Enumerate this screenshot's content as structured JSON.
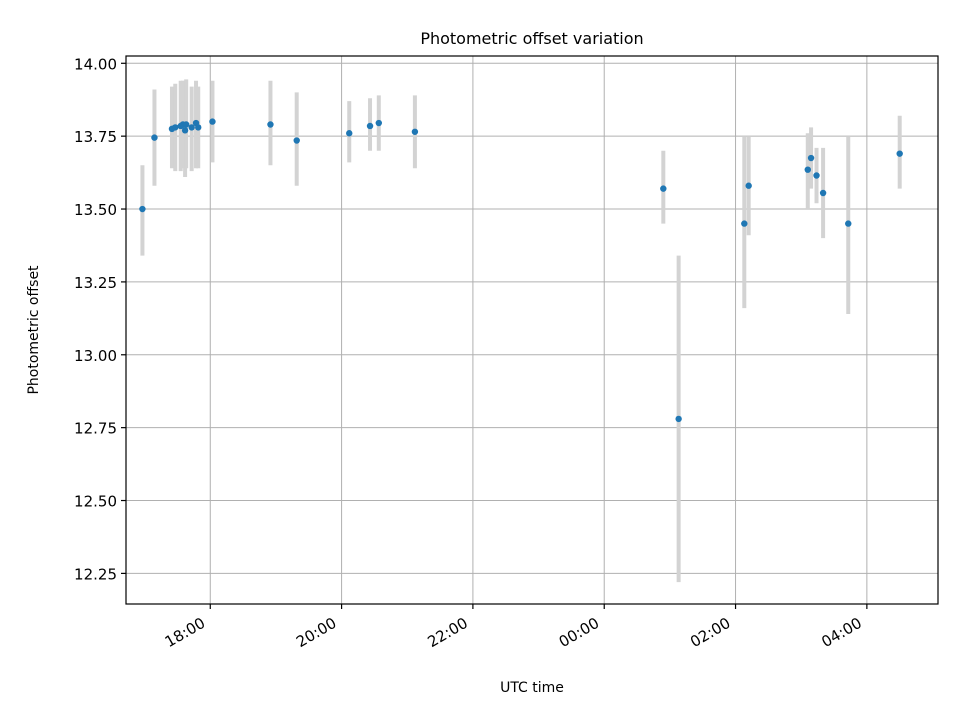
{
  "chart_data": {
    "type": "scatter",
    "title": "Photometric offset variation",
    "xlabel": "UTC time",
    "ylabel": "Photometric offset",
    "x_axis_kind": "time",
    "xlim": [
      "16:43",
      "05:05"
    ],
    "ylim": [
      12.145,
      14.025
    ],
    "grid": true,
    "x_ticks": [
      "18:00",
      "20:00",
      "22:00",
      "00:00",
      "02:00",
      "04:00"
    ],
    "y_ticks": [
      12.25,
      12.5,
      12.75,
      13.0,
      13.25,
      13.5,
      13.75,
      14.0
    ],
    "y_tick_labels": [
      "12.25",
      "12.50",
      "12.75",
      "13.00",
      "13.25",
      "13.50",
      "13.75",
      "14.00"
    ],
    "colors": {
      "point": "#1f77b4",
      "errorbar": "#d3d3d3",
      "grid": "#b0b0b0"
    },
    "points": [
      {
        "x": "16:58",
        "y": 13.5,
        "ymin": 13.34,
        "ymax": 13.65
      },
      {
        "x": "17:09",
        "y": 13.745,
        "ymin": 13.58,
        "ymax": 13.91
      },
      {
        "x": "17:25",
        "y": 13.775,
        "ymin": 13.64,
        "ymax": 13.92
      },
      {
        "x": "17:28",
        "y": 13.78,
        "ymin": 13.63,
        "ymax": 13.93
      },
      {
        "x": "17:33",
        "y": 13.785,
        "ymin": 13.63,
        "ymax": 13.94
      },
      {
        "x": "17:35",
        "y": 13.79,
        "ymin": 13.64,
        "ymax": 13.94
      },
      {
        "x": "17:37",
        "y": 13.77,
        "ymin": 13.61,
        "ymax": 13.94
      },
      {
        "x": "17:38",
        "y": 13.79,
        "ymin": 13.64,
        "ymax": 13.945
      },
      {
        "x": "17:43",
        "y": 13.78,
        "ymin": 13.63,
        "ymax": 13.92
      },
      {
        "x": "17:47",
        "y": 13.795,
        "ymin": 13.64,
        "ymax": 13.94
      },
      {
        "x": "17:49",
        "y": 13.78,
        "ymin": 13.64,
        "ymax": 13.92
      },
      {
        "x": "18:02",
        "y": 13.8,
        "ymin": 13.66,
        "ymax": 13.94
      },
      {
        "x": "18:55",
        "y": 13.79,
        "ymin": 13.65,
        "ymax": 13.94
      },
      {
        "x": "19:19",
        "y": 13.735,
        "ymin": 13.58,
        "ymax": 13.9
      },
      {
        "x": "20:07",
        "y": 13.76,
        "ymin": 13.66,
        "ymax": 13.87
      },
      {
        "x": "20:26",
        "y": 13.785,
        "ymin": 13.7,
        "ymax": 13.88
      },
      {
        "x": "20:34",
        "y": 13.795,
        "ymin": 13.7,
        "ymax": 13.89
      },
      {
        "x": "21:07",
        "y": 13.765,
        "ymin": 13.64,
        "ymax": 13.89
      },
      {
        "x": "00:54",
        "y": 13.57,
        "ymin": 13.45,
        "ymax": 13.7
      },
      {
        "x": "01:08",
        "y": 12.78,
        "ymin": 12.22,
        "ymax": 13.34
      },
      {
        "x": "02:08",
        "y": 13.45,
        "ymin": 13.16,
        "ymax": 13.75
      },
      {
        "x": "02:12",
        "y": 13.58,
        "ymin": 13.41,
        "ymax": 13.75
      },
      {
        "x": "03:06",
        "y": 13.635,
        "ymin": 13.5,
        "ymax": 13.76
      },
      {
        "x": "03:09",
        "y": 13.675,
        "ymin": 13.57,
        "ymax": 13.78
      },
      {
        "x": "03:14",
        "y": 13.615,
        "ymin": 13.52,
        "ymax": 13.71
      },
      {
        "x": "03:20",
        "y": 13.555,
        "ymin": 13.4,
        "ymax": 13.71
      },
      {
        "x": "03:43",
        "y": 13.45,
        "ymin": 13.14,
        "ymax": 13.75
      },
      {
        "x": "04:30",
        "y": 13.69,
        "ymin": 13.57,
        "ymax": 13.82
      }
    ]
  }
}
